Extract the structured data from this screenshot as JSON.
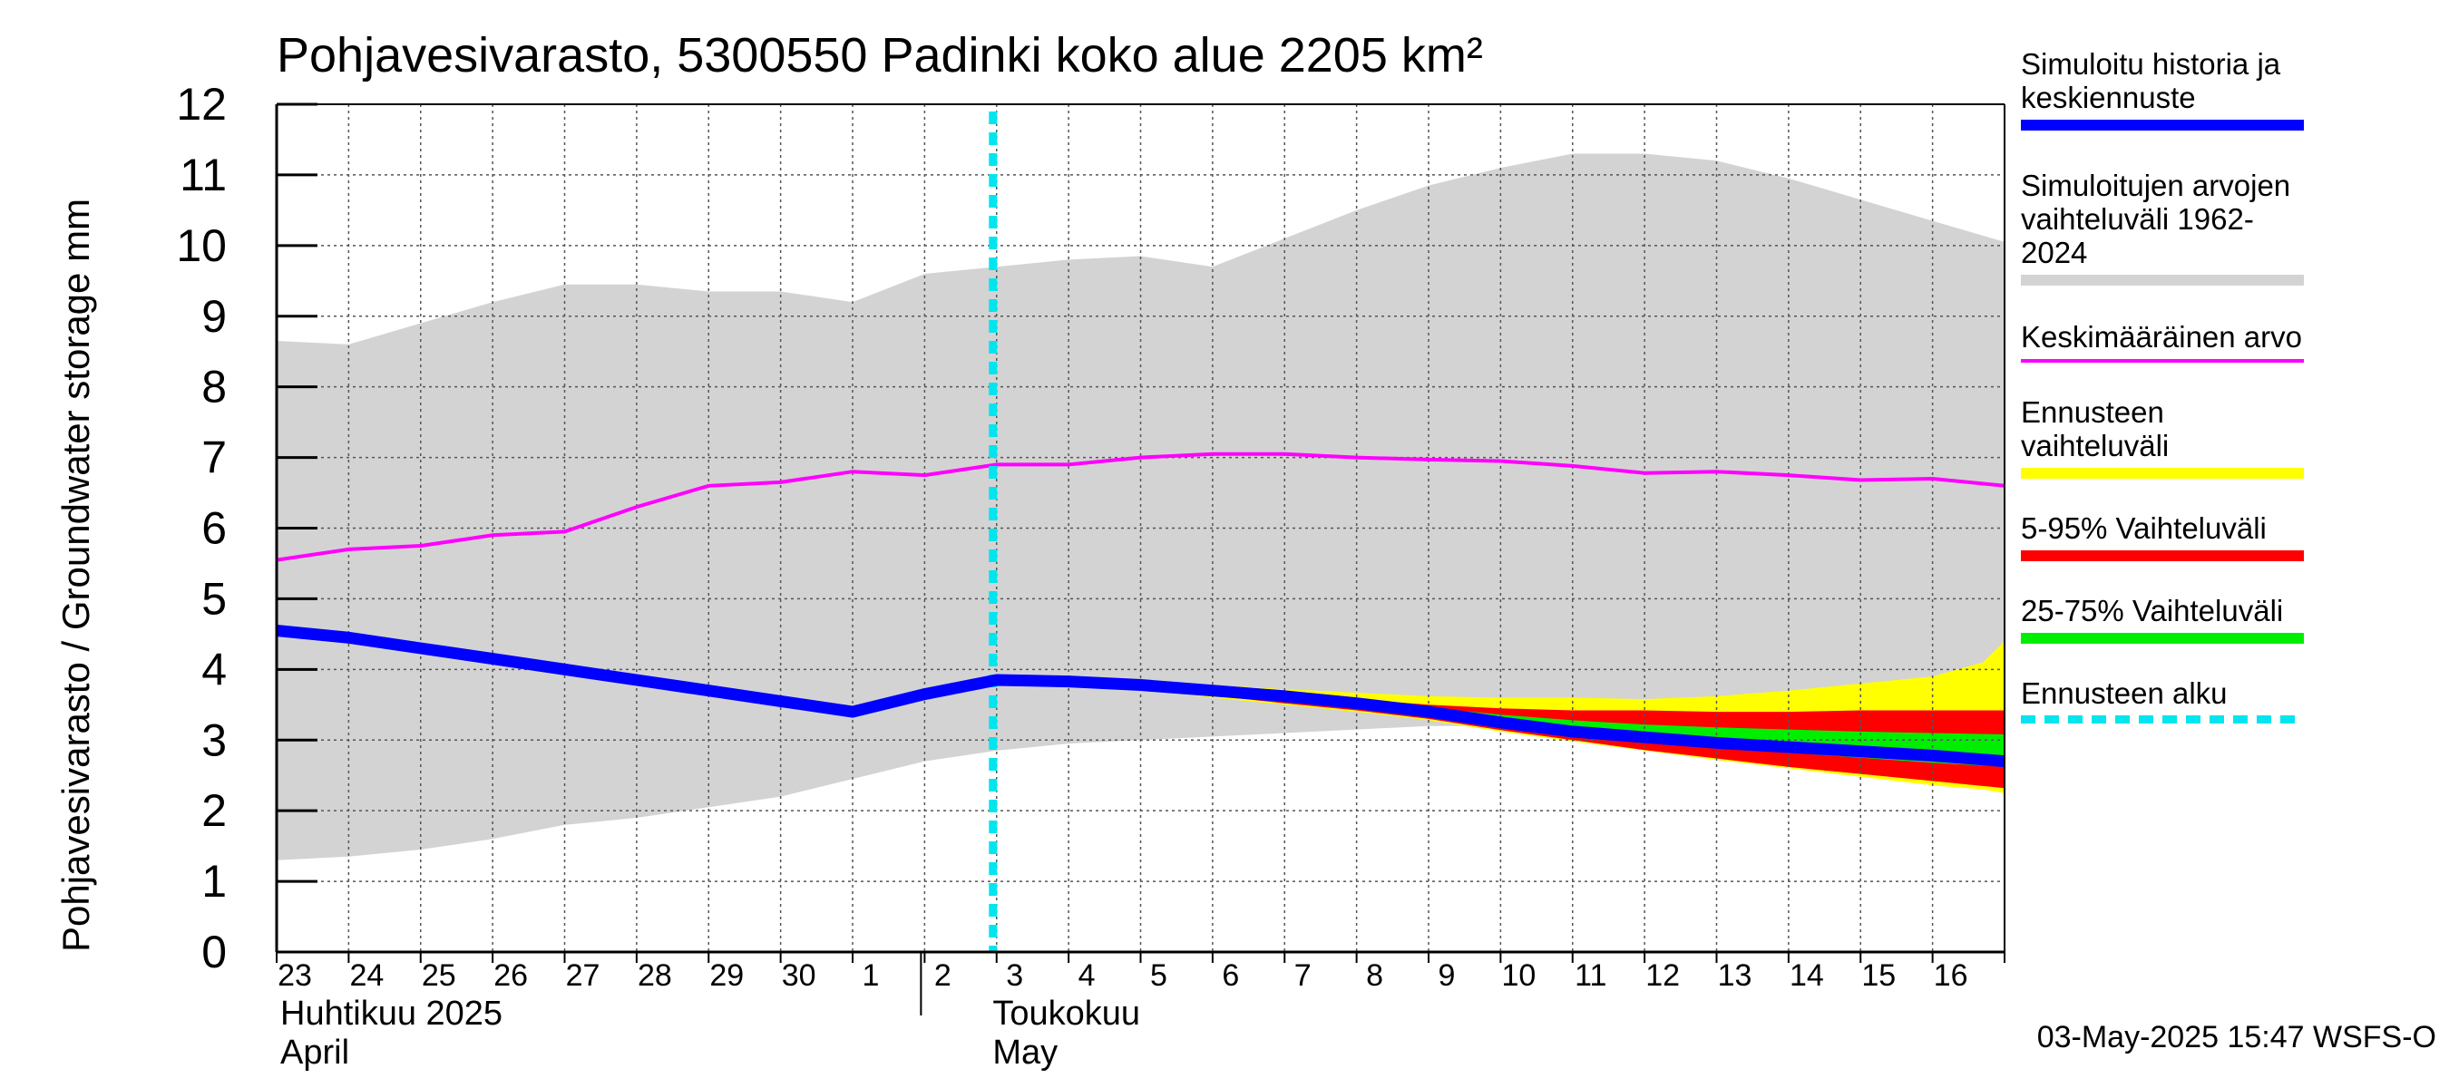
{
  "title": "Pohjavesivarasto, 5300550 Padinki koko alue 2205 km²",
  "ylabel": "Pohjavesivarasto / Groundwater storage   mm",
  "timestamp": "03-May-2025 15:47 WSFS-O",
  "legend": [
    {
      "label": "Simuloitu historia ja\nkeskiennuste",
      "color": "#0000ff",
      "style": "solid-thick"
    },
    {
      "label": "Simuloitujen arvojen\nvaihteluväli 1962-2024",
      "color": "#d3d3d3",
      "style": "solid"
    },
    {
      "label": "Keskimääräinen arvo",
      "color": "#ff00ff",
      "style": "solid-thin"
    },
    {
      "label": "Ennusteen vaihteluväli",
      "color": "#ffff00",
      "style": "solid"
    },
    {
      "label": "5-95% Vaihteluväli",
      "color": "#ff0000",
      "style": "solid"
    },
    {
      "label": "25-75% Vaihteluväli",
      "color": "#00ee00",
      "style": "solid"
    },
    {
      "label": "Ennusteen alku",
      "color": "#00e5ee",
      "style": "dashed"
    }
  ],
  "chart_data": {
    "type": "area",
    "title": "Pohjavesivarasto, 5300550 Padinki koko alue 2205 km²",
    "ylabel": "Pohjavesivarasto / Groundwater storage   mm",
    "ylim": [
      0,
      12
    ],
    "yticks": [
      0,
      1,
      2,
      3,
      4,
      5,
      6,
      7,
      8,
      9,
      10,
      11,
      12
    ],
    "grid": true,
    "legend_position": "right",
    "x_tick_labels": [
      "23",
      "24",
      "25",
      "26",
      "27",
      "28",
      "29",
      "30",
      "1",
      "2",
      "3",
      "4",
      "5",
      "6",
      "7",
      "8",
      "9",
      "10",
      "11",
      "12",
      "13",
      "14",
      "15",
      "16"
    ],
    "month_labels": [
      {
        "line1": "Huhtikuu  2025",
        "line2": "April",
        "at_day": 0
      },
      {
        "line1": "Toukokuu",
        "line2": "May",
        "at_day": 9
      }
    ],
    "forecast_start_day": 10,
    "history_range": {
      "days": [
        0,
        1,
        2,
        3,
        4,
        5,
        6,
        7,
        8,
        9,
        10,
        11,
        12,
        13,
        14,
        15,
        16,
        17,
        18,
        19,
        20,
        21,
        22,
        23,
        24
      ],
      "upper": [
        8.65,
        8.6,
        8.9,
        9.2,
        9.45,
        9.45,
        9.35,
        9.35,
        9.2,
        9.6,
        9.7,
        9.8,
        9.85,
        9.7,
        10.1,
        10.5,
        10.85,
        11.1,
        11.3,
        11.3,
        11.2,
        10.95,
        10.65,
        10.35,
        10.05
      ],
      "lower": [
        1.3,
        1.35,
        1.45,
        1.6,
        1.8,
        1.9,
        2.05,
        2.2,
        2.45,
        2.7,
        2.85,
        2.95,
        3.0,
        3.05,
        3.1,
        3.15,
        3.2,
        3.2,
        3.2,
        3.2,
        3.2,
        3.2,
        3.2,
        3.2,
        3.2
      ]
    },
    "mean": {
      "days": [
        0,
        1,
        2,
        3,
        4,
        5,
        6,
        7,
        8,
        9,
        10,
        11,
        12,
        13,
        14,
        15,
        16,
        17,
        18,
        19,
        20,
        21,
        22,
        23,
        24
      ],
      "values": [
        5.55,
        5.7,
        5.75,
        5.9,
        5.95,
        6.3,
        6.6,
        6.65,
        6.8,
        6.75,
        6.9,
        6.9,
        7.0,
        7.05,
        7.05,
        7.0,
        6.97,
        6.95,
        6.88,
        6.78,
        6.8,
        6.75,
        6.68,
        6.7,
        6.6
      ]
    },
    "simulated": {
      "days": [
        0,
        1,
        2,
        3,
        4,
        5,
        6,
        7,
        8,
        9,
        10,
        11,
        12,
        13,
        14,
        15,
        16,
        17,
        18,
        19,
        20,
        21,
        22,
        23,
        24
      ],
      "values": [
        4.55,
        4.45,
        4.3,
        4.15,
        4.0,
        3.85,
        3.7,
        3.55,
        3.4,
        3.65,
        3.85,
        3.83,
        3.78,
        3.7,
        3.62,
        3.52,
        3.4,
        3.25,
        3.12,
        3.04,
        2.96,
        2.9,
        2.84,
        2.78,
        2.7
      ]
    },
    "forecast_full": {
      "days": [
        10,
        11,
        12,
        13,
        14,
        15,
        16,
        17,
        18,
        19,
        20,
        21,
        22,
        23,
        23.7,
        24
      ],
      "upper": [
        3.85,
        3.85,
        3.82,
        3.78,
        3.72,
        3.67,
        3.62,
        3.6,
        3.6,
        3.58,
        3.62,
        3.7,
        3.8,
        3.9,
        4.1,
        4.4
      ],
      "lower": [
        3.85,
        3.82,
        3.72,
        3.6,
        3.5,
        3.4,
        3.28,
        3.12,
        2.98,
        2.85,
        2.72,
        2.6,
        2.48,
        2.36,
        2.3,
        2.25
      ]
    },
    "forecast_5_95": {
      "days": [
        10,
        11,
        12,
        13,
        14,
        15,
        16,
        17,
        18,
        19,
        20,
        21,
        22,
        23,
        24
      ],
      "upper": [
        3.85,
        3.84,
        3.78,
        3.72,
        3.65,
        3.58,
        3.5,
        3.45,
        3.42,
        3.42,
        3.4,
        3.4,
        3.42,
        3.42,
        3.42
      ],
      "lower": [
        3.85,
        3.82,
        3.74,
        3.63,
        3.52,
        3.42,
        3.3,
        3.14,
        3.0,
        2.86,
        2.74,
        2.62,
        2.52,
        2.42,
        2.32
      ]
    },
    "forecast_25_75": {
      "days": [
        10,
        11,
        12,
        13,
        14,
        15,
        16,
        17,
        18,
        19,
        20,
        21,
        22,
        23,
        24
      ],
      "upper": [
        3.85,
        3.83,
        3.77,
        3.7,
        3.62,
        3.54,
        3.46,
        3.36,
        3.28,
        3.22,
        3.18,
        3.15,
        3.12,
        3.1,
        3.08
      ],
      "lower": [
        3.85,
        3.82,
        3.76,
        3.68,
        3.58,
        3.48,
        3.36,
        3.2,
        3.08,
        2.98,
        2.9,
        2.82,
        2.75,
        2.68,
        2.62
      ]
    }
  }
}
